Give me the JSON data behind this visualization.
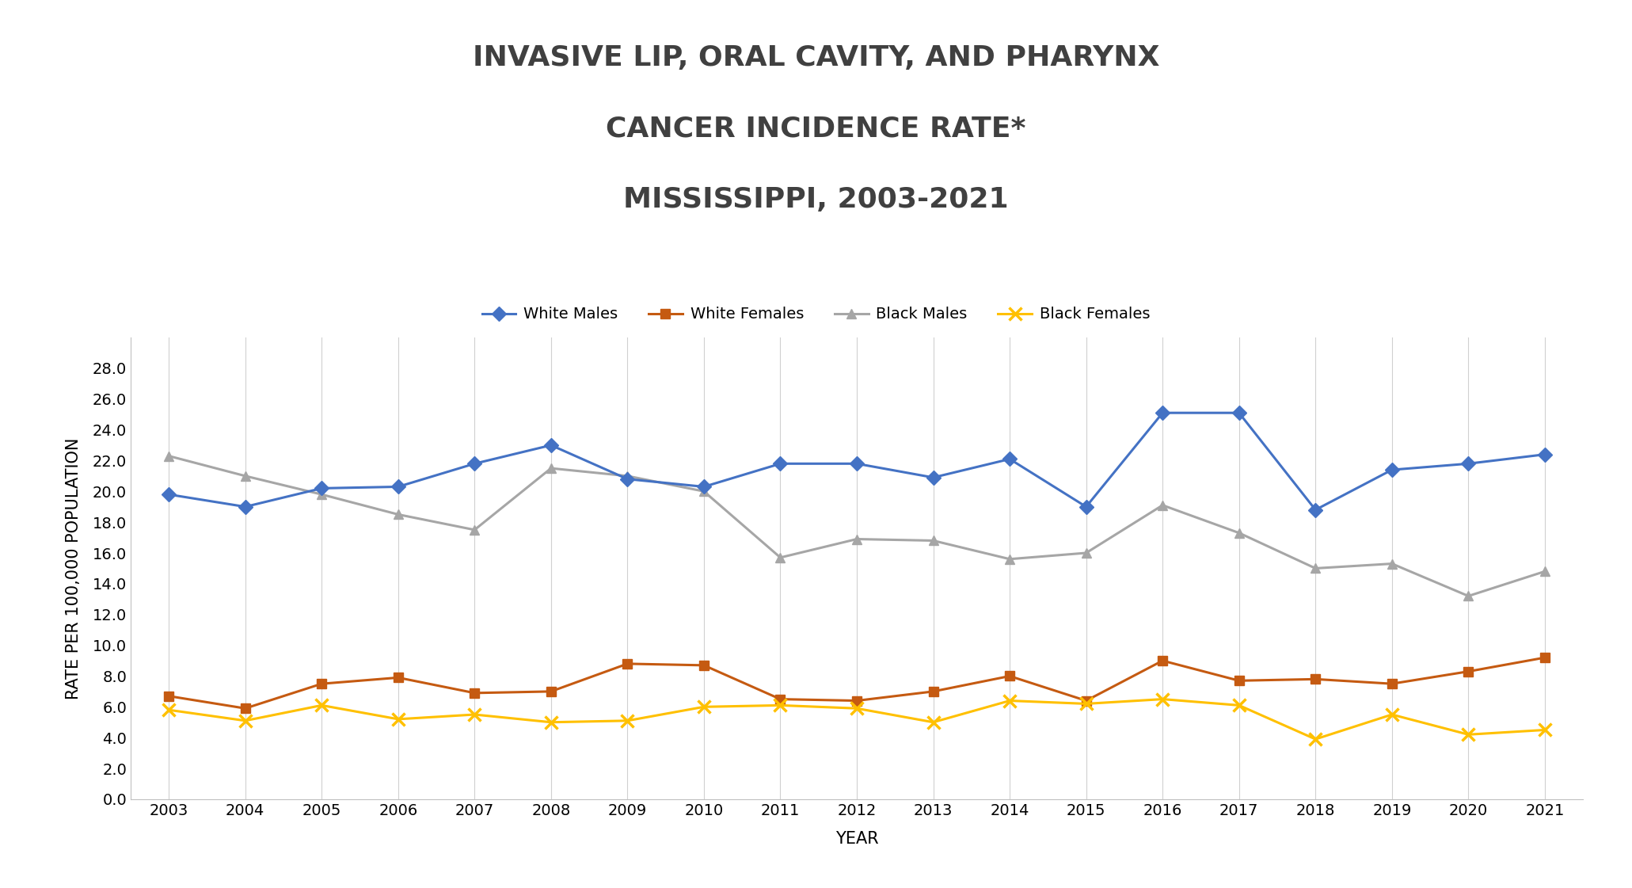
{
  "title_line1": "INVASIVE LIP, ORAL CAVITY, AND PHARYNX",
  "title_line2": "CANCER INCIDENCE RATE*",
  "title_line3": "MISSISSIPPI, 2003-2021",
  "xlabel": "YEAR",
  "ylabel": "RATE PER 100,000 POPULATION",
  "years": [
    2003,
    2004,
    2005,
    2006,
    2007,
    2008,
    2009,
    2010,
    2011,
    2012,
    2013,
    2014,
    2015,
    2016,
    2017,
    2018,
    2019,
    2020,
    2021
  ],
  "white_males": [
    19.8,
    19.0,
    20.2,
    20.3,
    21.8,
    23.0,
    20.8,
    20.3,
    21.8,
    21.8,
    20.9,
    22.1,
    19.0,
    25.1,
    25.1,
    18.8,
    21.4,
    21.8,
    22.4
  ],
  "white_females": [
    6.7,
    5.9,
    7.5,
    7.9,
    6.9,
    7.0,
    8.8,
    8.7,
    6.5,
    6.4,
    7.0,
    8.0,
    6.4,
    9.0,
    7.7,
    7.8,
    7.5,
    8.3,
    9.2
  ],
  "black_males": [
    22.3,
    21.0,
    19.8,
    18.5,
    17.5,
    21.5,
    21.0,
    20.0,
    15.7,
    16.9,
    16.8,
    15.6,
    16.0,
    19.1,
    17.3,
    15.0,
    15.3,
    13.2,
    14.8
  ],
  "black_females": [
    5.8,
    5.1,
    6.1,
    5.2,
    5.5,
    5.0,
    5.1,
    6.0,
    6.1,
    5.9,
    5.0,
    6.4,
    6.2,
    6.5,
    6.1,
    3.9,
    5.5,
    4.2,
    4.5
  ],
  "white_males_color": "#4472C4",
  "white_females_color": "#C55A11",
  "black_males_color": "#A6A6A6",
  "black_females_color": "#FFC000",
  "background_color": "#FFFFFF",
  "ylim": [
    0,
    30
  ],
  "yticks": [
    0.0,
    2.0,
    4.0,
    6.0,
    8.0,
    10.0,
    12.0,
    14.0,
    16.0,
    18.0,
    20.0,
    22.0,
    24.0,
    26.0,
    28.0
  ],
  "title_fontsize": 26,
  "axis_label_fontsize": 15,
  "tick_fontsize": 14,
  "legend_fontsize": 14,
  "linewidth": 2.2,
  "marker_size": 9
}
